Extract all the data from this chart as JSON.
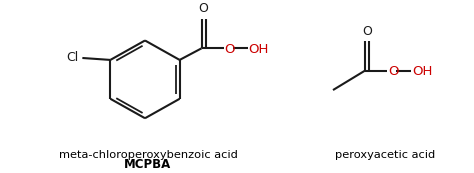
{
  "bg_color": "#ffffff",
  "label1_line1": "meta-chloroperoxybenzoic acid",
  "label1_line2": "MCPBA",
  "label2": "peroxyacetic acid",
  "label_color": "#000000",
  "ooh_color": "#cc0000",
  "line_color": "#1a1a1a",
  "line_width": 1.5,
  "fig_width": 4.74,
  "fig_height": 1.73,
  "dpi": 100
}
